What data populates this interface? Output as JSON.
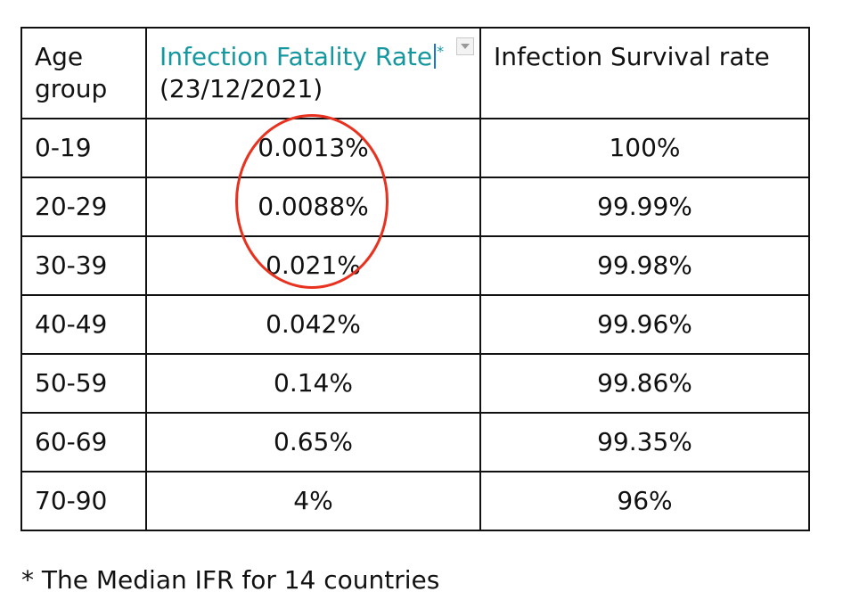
{
  "table": {
    "headers": {
      "age": "Age group",
      "ifr_title": "Infection Fatality Rate",
      "ifr_marker": "*",
      "ifr_date": "(23/12/2021)",
      "isr": "Infection Survival rate"
    },
    "rows": [
      {
        "age": "0-19",
        "ifr": "0.0013%",
        "isr": "100%"
      },
      {
        "age": "20-29",
        "ifr": "0.0088%",
        "isr": "99.99%"
      },
      {
        "age": "30-39",
        "ifr": "0.021%",
        "isr": "99.98%"
      },
      {
        "age": "40-49",
        "ifr": "0.042%",
        "isr": "99.96%"
      },
      {
        "age": "50-59",
        "ifr": "0.14%",
        "isr": "99.86%"
      },
      {
        "age": "60-69",
        "ifr": "0.65%",
        "isr": "99.35%"
      },
      {
        "age": "70-90",
        "ifr": "4%",
        "isr": "96%"
      }
    ]
  },
  "footnote": "* The Median IFR for 14 countries",
  "colors": {
    "ifr_header": "#1597a0",
    "highlight_circle": "#e8321f",
    "text_cursor": "#1a73e8"
  },
  "icons": {
    "dropdown": "chevron-down-icon",
    "annotation": "red-circle-highlight"
  }
}
